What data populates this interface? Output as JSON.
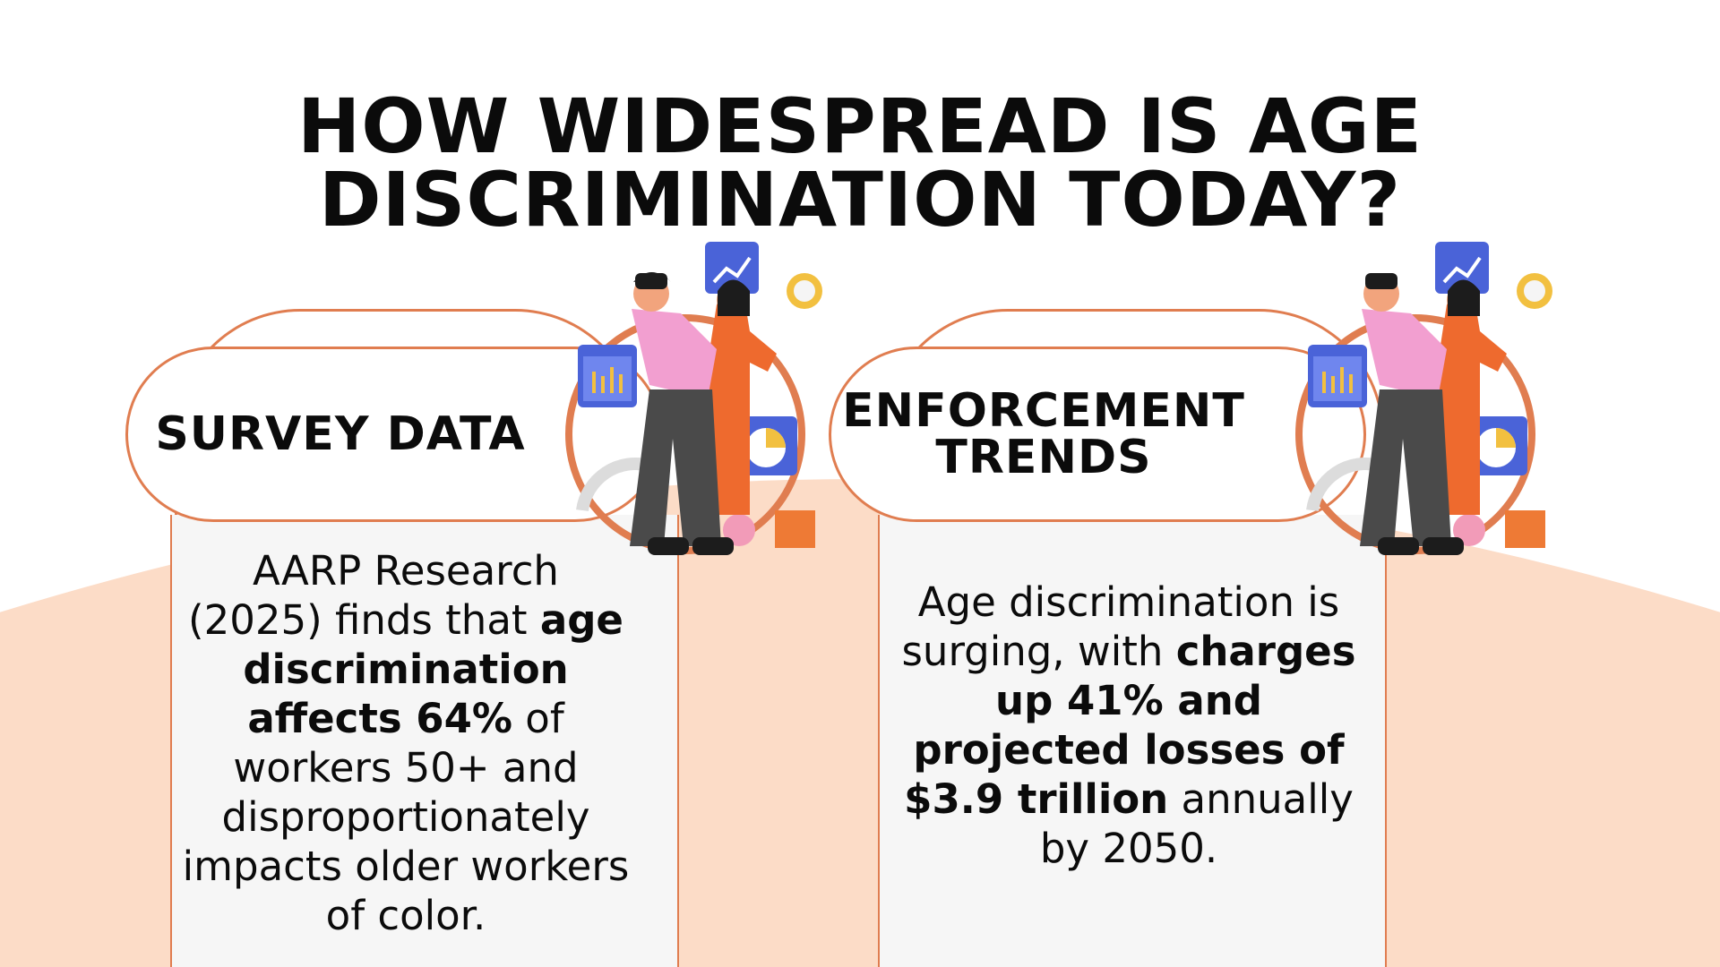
{
  "page": {
    "title_lines": [
      "HOW WIDESPREAD IS AGE",
      "DISCRIMINATION TODAY?"
    ],
    "colors": {
      "accent": "#e07d50",
      "peach": "#fcdcc7",
      "card": "#f6f6f6",
      "text": "#0b0b0b"
    }
  },
  "cards": [
    {
      "heading_lines": [
        "SURVEY DATA"
      ],
      "text": {
        "pre": "AARP Research (2025) finds that ",
        "bold": "age discrimination affects 64%",
        "post": " of workers 50+ and disproportionately impacts older workers of color."
      },
      "illustration_icon": "people-analytics-illustration"
    },
    {
      "heading_lines": [
        "ENFORCEMENT",
        "TRENDS"
      ],
      "text": {
        "pre": "Age discrimination is surging, with ",
        "bold": "charges up 41% and projected losses of $3.9 trillion",
        "post": " annually by 2050."
      },
      "illustration_icon": "people-analytics-illustration"
    }
  ]
}
